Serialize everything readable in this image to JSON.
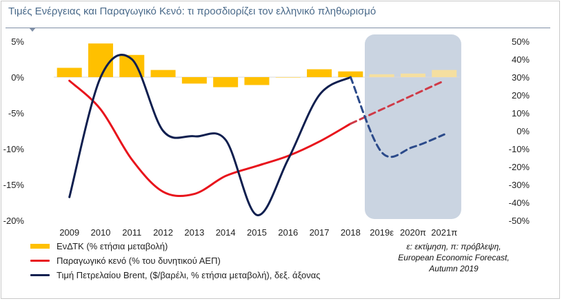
{
  "title": "Τιμές Ενέργειας και Παραγωγικό Κενό: τι προσδιορίζει τον ελληνικό πληθωρισμό",
  "note": {
    "line1": "ε: εκτίμηση, π: πρόβλεψη,",
    "line2": "European Economic Forecast,",
    "line3": "Autumn 2019"
  },
  "chart_data": {
    "type": "bar+line",
    "categories": [
      "2009",
      "2010",
      "2011",
      "2012",
      "2013",
      "2014",
      "2015",
      "2016",
      "2017",
      "2018",
      "2019ε",
      "2020π",
      "2021π"
    ],
    "left_axis": {
      "ticks": [
        "5%",
        "0%",
        "-5%",
        "-10%",
        "-15%",
        "-20%"
      ],
      "tick_values": [
        5,
        0,
        -5,
        -10,
        -15,
        -20
      ],
      "ylim": [
        -20,
        5
      ]
    },
    "right_axis": {
      "ticks": [
        "50%",
        "40%",
        "30%",
        "20%",
        "10%",
        "0%",
        "-10%",
        "-20%",
        "-30%",
        "-40%",
        "-50%"
      ],
      "tick_values": [
        50,
        40,
        30,
        20,
        10,
        0,
        -10,
        -20,
        -30,
        -40,
        -50
      ],
      "ylim": [
        -50,
        50
      ]
    },
    "forecast_start": "2019ε",
    "legend_position": "bottom-left",
    "series": [
      {
        "name": "ΕνΔΤΚ  (% ετήσια μεταβολή)",
        "kind": "bar",
        "axis": "left",
        "color": "#ffc000",
        "forecast_color": "#f5dfa0",
        "values": [
          1.3,
          4.7,
          3.1,
          1.0,
          -0.9,
          -1.4,
          -1.1,
          0.0,
          1.1,
          0.8,
          0.4,
          0.5,
          1.0
        ]
      },
      {
        "name": "Παραγωγικό κενό (% του δυνητικού ΑΕΠ)",
        "kind": "line",
        "axis": "left",
        "color": "#e8141c",
        "forecast_color": "#cf3a47",
        "x": [
          "2009",
          "2010",
          "2011",
          "2012",
          "2013",
          "2014",
          "2015",
          "2016",
          "2017",
          "2018",
          "2019ε",
          "2020π",
          "2021π"
        ],
        "values": [
          -0.5,
          -4.5,
          -11.5,
          -16.0,
          -16.3,
          -13.8,
          -12.4,
          -11.0,
          -9.0,
          -6.5,
          -4.5,
          -2.5,
          -0.5
        ]
      },
      {
        "name": "Τιμή Πετρελαίου Brent, ($/βαρέλι, % ετήσια μεταβολή), δεξ. άξονας",
        "kind": "line",
        "axis": "right",
        "color": "#0f1f4f",
        "forecast_color": "#2b4a8a",
        "x": [
          "2009",
          "2010",
          "2011",
          "2012",
          "2013",
          "2014",
          "2015",
          "2016",
          "2017",
          "2018",
          "2019ε",
          "2020π",
          "2021π"
        ],
        "values": [
          -37,
          30,
          40,
          0,
          -3,
          -5,
          -47,
          -16,
          20,
          30,
          -12,
          -9,
          -2
        ]
      }
    ]
  }
}
